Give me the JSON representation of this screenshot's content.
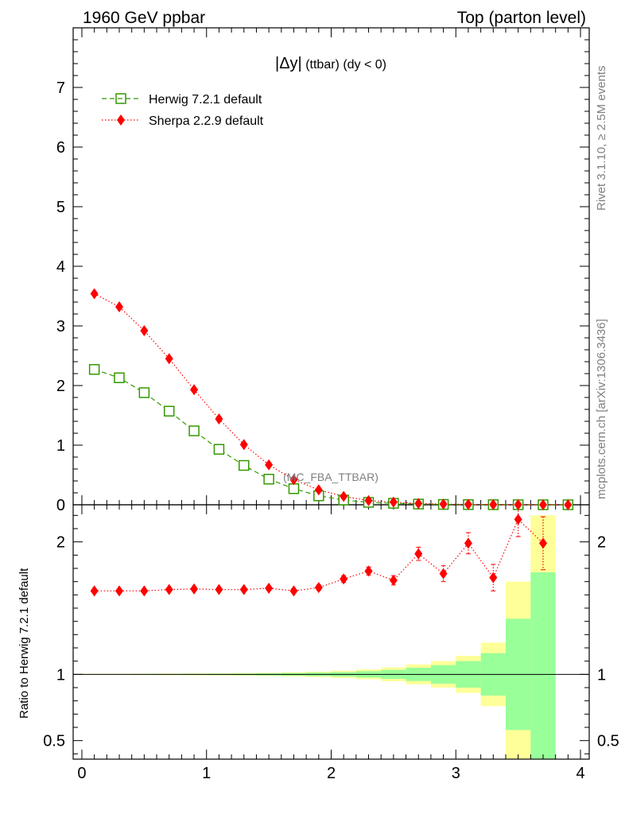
{
  "header": {
    "left": "1960 GeV ppbar",
    "right": "Top (parton level)"
  },
  "side_text": {
    "rivet": "Rivet 3.1.10, ≥ 2.5M events",
    "mcplots": "mcplots.cern.ch [arXiv:1306.3436]"
  },
  "main_title": {
    "dy": "|Δy|",
    "rest": " (ttbar) (dy < 0)"
  },
  "analysis_label": "(MC_FBA_TTBAR)",
  "colors": {
    "herwig": "#339900",
    "sherpa": "#ff0000",
    "band_outer": "#ffff99",
    "band_inner": "#99ff99"
  },
  "chart_data": [
    {
      "type": "line",
      "title": "|Δy| (ttbar) (dy < 0)",
      "xlim": [
        -0.07,
        4.07
      ],
      "ylim": [
        0,
        8
      ],
      "yticks": [
        0,
        1,
        2,
        3,
        4,
        5,
        6,
        7
      ],
      "legend": {
        "placement": "top-left"
      },
      "x": [
        0.1,
        0.3,
        0.5,
        0.7,
        0.9,
        1.1,
        1.3,
        1.5,
        1.7,
        1.9,
        2.1,
        2.3,
        2.5,
        2.7,
        2.9,
        3.1,
        3.3,
        3.5,
        3.7,
        3.9
      ],
      "series": [
        {
          "name": "Herwig 7.2.1 default",
          "marker": "open-square",
          "line": "dashed",
          "values": [
            2.27,
            2.13,
            1.88,
            1.57,
            1.24,
            0.93,
            0.66,
            0.43,
            0.27,
            0.15,
            0.08,
            0.04,
            0.025,
            0.012,
            0.006,
            0.003,
            0.0015,
            0.0008,
            0.0003,
            0.0001
          ]
        },
        {
          "name": "Sherpa 2.2.9 default",
          "marker": "filled-diamond",
          "line": "dotted",
          "values": [
            3.54,
            3.32,
            2.92,
            2.45,
            1.93,
            1.44,
            1.01,
            0.67,
            0.42,
            0.25,
            0.14,
            0.07,
            0.045,
            0.022,
            0.011,
            0.006,
            0.0026,
            0.0017,
            0.0006,
            0.0002
          ]
        }
      ]
    },
    {
      "type": "line",
      "ylabel": "Ratio to Herwig 7.2.1 default",
      "xlim": [
        -0.07,
        4.07
      ],
      "ylim": [
        0.36,
        2.28
      ],
      "xticks": [
        0,
        1,
        2,
        3,
        4
      ],
      "yticks": [
        0.5,
        1,
        2
      ],
      "reference": 1,
      "x": [
        0.1,
        0.3,
        0.5,
        0.7,
        0.9,
        1.1,
        1.3,
        1.5,
        1.7,
        1.9,
        2.1,
        2.3,
        2.5,
        2.7,
        2.9,
        3.1,
        3.3,
        3.5,
        3.7
      ],
      "series": [
        {
          "name": "Sherpa 2.2.9 default",
          "values": [
            1.63,
            1.63,
            1.63,
            1.64,
            1.645,
            1.64,
            1.64,
            1.65,
            1.63,
            1.655,
            1.72,
            1.78,
            1.71,
            1.91,
            1.76,
            1.99,
            1.73,
            2.17,
            1.99
          ],
          "errors": [
            0.01,
            0.01,
            0.01,
            0.01,
            0.01,
            0.01,
            0.01,
            0.015,
            0.015,
            0.02,
            0.025,
            0.03,
            0.035,
            0.05,
            0.06,
            0.08,
            0.1,
            0.13,
            0.2
          ]
        }
      ],
      "bands": {
        "x_edges": [
          0.0,
          0.2,
          0.4,
          0.6,
          0.8,
          1.0,
          1.2,
          1.4,
          1.6,
          1.8,
          2.0,
          2.2,
          2.4,
          2.6,
          2.8,
          3.0,
          3.2,
          3.4,
          3.6,
          3.8
        ],
        "inner": [
          0.002,
          0.002,
          0.003,
          0.003,
          0.004,
          0.005,
          0.006,
          0.008,
          0.01,
          0.013,
          0.017,
          0.024,
          0.034,
          0.05,
          0.07,
          0.1,
          0.16,
          0.42,
          0.77
        ],
        "outer": [
          0.004,
          0.004,
          0.005,
          0.006,
          0.007,
          0.008,
          0.01,
          0.012,
          0.016,
          0.02,
          0.027,
          0.037,
          0.052,
          0.075,
          0.1,
          0.14,
          0.24,
          0.7,
          1.2
        ]
      }
    }
  ]
}
